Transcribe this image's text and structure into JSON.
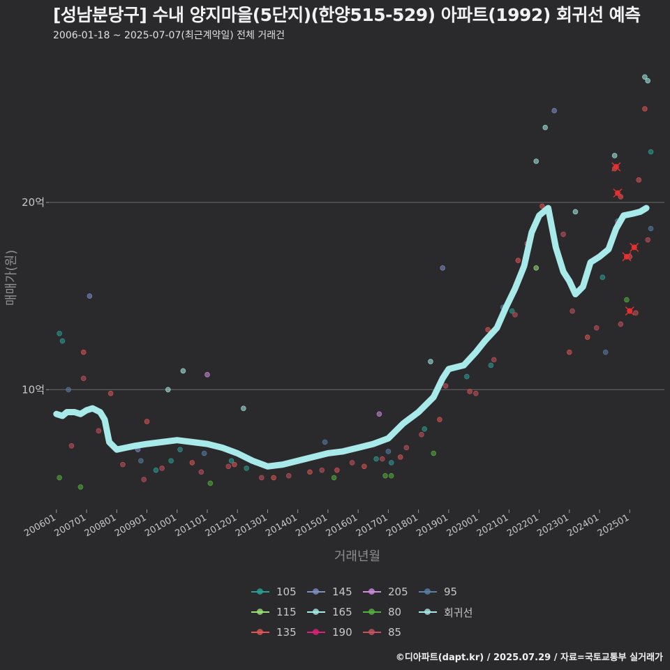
{
  "header": {
    "title": "[성남분당구] 수내 양지마을(5단지)(한양515-529) 아파트(1992) 회귀선 예측",
    "subtitle": "2006-01-18 ~ 2025-07-07(최근계약일) 전체 거래건"
  },
  "footer": {
    "credit": "©디아파트(dapt.kr) / 2025.07.29 / 자료=국토교통부 실거래가"
  },
  "legend": {
    "items": [
      {
        "label": "105",
        "color": "#2aa198"
      },
      {
        "label": "115",
        "color": "#9be07a"
      },
      {
        "label": "135",
        "color": "#e05555"
      },
      {
        "label": "145",
        "color": "#7e8fc6"
      },
      {
        "label": "165",
        "color": "#a6ece6"
      },
      {
        "label": "190",
        "color": "#e0207a"
      },
      {
        "label": "205",
        "color": "#d08be0"
      },
      {
        "label": "80",
        "color": "#55b040"
      },
      {
        "label": "85",
        "color": "#c8525e"
      },
      {
        "label": "95",
        "color": "#5a7fa8"
      },
      {
        "label": "회귀선",
        "color": "#a8eaea"
      }
    ]
  },
  "chart_data": {
    "type": "scatter",
    "title": "[성남분당구] 수내 양지마을(5단지)(한양515-529) 아파트(1992) 회귀선 예측",
    "xlabel": "거래년월",
    "ylabel": "매매가(원)",
    "xlim": [
      2005.75,
      2026.15
    ],
    "ylim": [
      3.6,
      28.5
    ],
    "y_ticks": [
      {
        "value": 10,
        "label": "10억"
      },
      {
        "value": 20,
        "label": "20억"
      }
    ],
    "x_ticks": [
      {
        "value": 2006,
        "label": "200601"
      },
      {
        "value": 2007,
        "label": "200701"
      },
      {
        "value": 2008,
        "label": "200801"
      },
      {
        "value": 2009,
        "label": "200901"
      },
      {
        "value": 2010,
        "label": "201001"
      },
      {
        "value": 2011,
        "label": "201101"
      },
      {
        "value": 2012,
        "label": "201201"
      },
      {
        "value": 2013,
        "label": "201301"
      },
      {
        "value": 2014,
        "label": "201401"
      },
      {
        "value": 2015,
        "label": "201501"
      },
      {
        "value": 2016,
        "label": "201601"
      },
      {
        "value": 2017,
        "label": "201701"
      },
      {
        "value": 2018,
        "label": "201801"
      },
      {
        "value": 2019,
        "label": "201901"
      },
      {
        "value": 2020,
        "label": "202001"
      },
      {
        "value": 2021,
        "label": "202101"
      },
      {
        "value": 2022,
        "label": "202201"
      },
      {
        "value": 2023,
        "label": "202301"
      },
      {
        "value": 2024,
        "label": "202401"
      },
      {
        "value": 2025,
        "label": "202501"
      }
    ],
    "regression": {
      "name": "회귀선",
      "points": [
        [
          2006.0,
          8.7
        ],
        [
          2006.2,
          8.6
        ],
        [
          2006.35,
          8.8
        ],
        [
          2006.6,
          8.8
        ],
        [
          2006.8,
          8.7
        ],
        [
          2007.0,
          8.9
        ],
        [
          2007.2,
          9.0
        ],
        [
          2007.45,
          8.8
        ],
        [
          2007.6,
          8.4
        ],
        [
          2007.75,
          7.2
        ],
        [
          2008.0,
          6.8
        ],
        [
          2008.3,
          6.9
        ],
        [
          2008.6,
          7.0
        ],
        [
          2009.0,
          7.1
        ],
        [
          2009.5,
          7.2
        ],
        [
          2010.0,
          7.3
        ],
        [
          2010.5,
          7.2
        ],
        [
          2011.0,
          7.1
        ],
        [
          2011.5,
          6.9
        ],
        [
          2012.0,
          6.6
        ],
        [
          2012.5,
          6.2
        ],
        [
          2013.0,
          5.9
        ],
        [
          2013.5,
          6.0
        ],
        [
          2014.0,
          6.2
        ],
        [
          2014.5,
          6.4
        ],
        [
          2015.0,
          6.6
        ],
        [
          2015.5,
          6.7
        ],
        [
          2016.0,
          6.9
        ],
        [
          2016.5,
          7.1
        ],
        [
          2017.0,
          7.4
        ],
        [
          2017.5,
          8.2
        ],
        [
          2018.0,
          8.8
        ],
        [
          2018.5,
          9.6
        ],
        [
          2018.8,
          10.6
        ],
        [
          2019.0,
          11.1
        ],
        [
          2019.5,
          11.3
        ],
        [
          2019.9,
          12.0
        ],
        [
          2020.2,
          12.6
        ],
        [
          2020.6,
          13.3
        ],
        [
          2020.9,
          14.4
        ],
        [
          2021.2,
          15.4
        ],
        [
          2021.5,
          16.6
        ],
        [
          2021.75,
          18.4
        ],
        [
          2022.0,
          19.3
        ],
        [
          2022.3,
          19.7
        ],
        [
          2022.55,
          17.6
        ],
        [
          2022.8,
          16.3
        ],
        [
          2023.0,
          15.8
        ],
        [
          2023.2,
          15.1
        ],
        [
          2023.45,
          15.5
        ],
        [
          2023.7,
          16.8
        ],
        [
          2024.0,
          17.1
        ],
        [
          2024.3,
          17.5
        ],
        [
          2024.55,
          18.6
        ],
        [
          2024.8,
          19.3
        ],
        [
          2025.1,
          19.4
        ],
        [
          2025.35,
          19.5
        ],
        [
          2025.55,
          19.7
        ]
      ]
    },
    "series": [
      {
        "name": "105",
        "color": "#2aa198",
        "points": [
          [
            2006.1,
            13.0
          ],
          [
            2006.2,
            12.6
          ],
          [
            2009.3,
            5.7
          ],
          [
            2009.8,
            6.2
          ],
          [
            2010.1,
            6.8
          ],
          [
            2011.8,
            6.2
          ],
          [
            2012.3,
            5.8
          ],
          [
            2016.6,
            6.3
          ],
          [
            2017.1,
            6.1
          ],
          [
            2018.2,
            7.9
          ],
          [
            2019.6,
            10.7
          ],
          [
            2020.4,
            11.3
          ],
          [
            2021.1,
            14.2
          ],
          [
            2024.1,
            16.0
          ],
          [
            2024.6,
            19.0
          ],
          [
            2025.7,
            22.7
          ]
        ]
      },
      {
        "name": "115",
        "color": "#9be07a",
        "points": [
          [
            2021.9,
            16.5
          ]
        ]
      },
      {
        "name": "135",
        "color": "#e05555",
        "points": [
          [
            2006.9,
            12.0
          ],
          [
            2007.8,
            9.8
          ],
          [
            2009.0,
            8.3
          ],
          [
            2010.5,
            6.1
          ],
          [
            2011.9,
            6.0
          ],
          [
            2013.2,
            5.3
          ],
          [
            2014.4,
            5.6
          ],
          [
            2015.3,
            5.7
          ],
          [
            2016.2,
            5.9
          ],
          [
            2017.4,
            6.4
          ],
          [
            2018.7,
            8.4
          ],
          [
            2019.7,
            9.9
          ],
          [
            2020.3,
            13.2
          ],
          [
            2021.3,
            16.9
          ],
          [
            2022.1,
            19.8
          ],
          [
            2023.0,
            12.0
          ],
          [
            2023.6,
            12.8
          ],
          [
            2024.5,
            21.8
          ],
          [
            2024.7,
            20.3
          ],
          [
            2025.0,
            17.1
          ],
          [
            2025.3,
            21.2
          ],
          [
            2025.5,
            25.0
          ]
        ]
      },
      {
        "name": "145",
        "color": "#7e8fc6",
        "points": [
          [
            2007.1,
            15.0
          ],
          [
            2008.7,
            6.8
          ],
          [
            2018.8,
            16.5
          ],
          [
            2022.5,
            24.9
          ]
        ]
      },
      {
        "name": "165",
        "color": "#a6ece6",
        "points": [
          [
            2009.7,
            10.0
          ],
          [
            2010.2,
            11.0
          ],
          [
            2012.2,
            9.0
          ],
          [
            2018.4,
            11.5
          ],
          [
            2021.9,
            22.2
          ],
          [
            2022.2,
            24.0
          ],
          [
            2023.2,
            19.5
          ],
          [
            2024.5,
            22.5
          ],
          [
            2025.5,
            26.7
          ],
          [
            2025.6,
            26.5
          ]
        ]
      },
      {
        "name": "190",
        "color": "#e0207a",
        "points": [
          [
            2024.6,
            18.9
          ]
        ]
      },
      {
        "name": "205",
        "color": "#d08be0",
        "points": [
          [
            2011.0,
            10.8
          ],
          [
            2016.7,
            8.7
          ]
        ]
      },
      {
        "name": "80",
        "color": "#55b040",
        "points": [
          [
            2006.1,
            5.3
          ],
          [
            2006.8,
            4.8
          ],
          [
            2011.1,
            5.0
          ],
          [
            2015.2,
            5.3
          ],
          [
            2016.9,
            5.4
          ],
          [
            2017.1,
            5.4
          ],
          [
            2018.5,
            6.6
          ],
          [
            2024.9,
            14.8
          ]
        ]
      },
      {
        "name": "85",
        "color": "#c8525e",
        "points": [
          [
            2006.5,
            7.0
          ],
          [
            2006.9,
            10.6
          ],
          [
            2007.4,
            7.8
          ],
          [
            2008.2,
            6.0
          ],
          [
            2008.9,
            5.2
          ],
          [
            2009.5,
            5.8
          ],
          [
            2010.8,
            5.6
          ],
          [
            2011.7,
            5.9
          ],
          [
            2012.8,
            5.3
          ],
          [
            2013.7,
            5.4
          ],
          [
            2014.8,
            5.7
          ],
          [
            2015.8,
            6.1
          ],
          [
            2016.8,
            6.3
          ],
          [
            2017.6,
            6.9
          ],
          [
            2018.1,
            7.6
          ],
          [
            2018.9,
            10.2
          ],
          [
            2019.9,
            9.8
          ],
          [
            2020.5,
            11.6
          ],
          [
            2021.2,
            14.0
          ],
          [
            2021.6,
            17.8
          ],
          [
            2022.8,
            18.3
          ],
          [
            2023.1,
            14.2
          ],
          [
            2023.9,
            13.3
          ],
          [
            2024.7,
            13.5
          ],
          [
            2025.2,
            14.1
          ],
          [
            2025.6,
            18.0
          ]
        ]
      },
      {
        "name": "95",
        "color": "#5a7fa8",
        "points": [
          [
            2006.4,
            10.0
          ],
          [
            2008.8,
            6.2
          ],
          [
            2010.9,
            6.6
          ],
          [
            2012.6,
            6.1
          ],
          [
            2014.9,
            7.2
          ],
          [
            2017.0,
            6.7
          ],
          [
            2020.8,
            14.4
          ],
          [
            2024.2,
            12.0
          ],
          [
            2025.7,
            18.6
          ]
        ]
      }
    ],
    "highlighted_recent": [
      [
        2024.55,
        21.9
      ],
      [
        2024.6,
        20.5
      ],
      [
        2024.9,
        17.1
      ],
      [
        2025.0,
        14.2
      ],
      [
        2025.15,
        17.6
      ]
    ]
  }
}
